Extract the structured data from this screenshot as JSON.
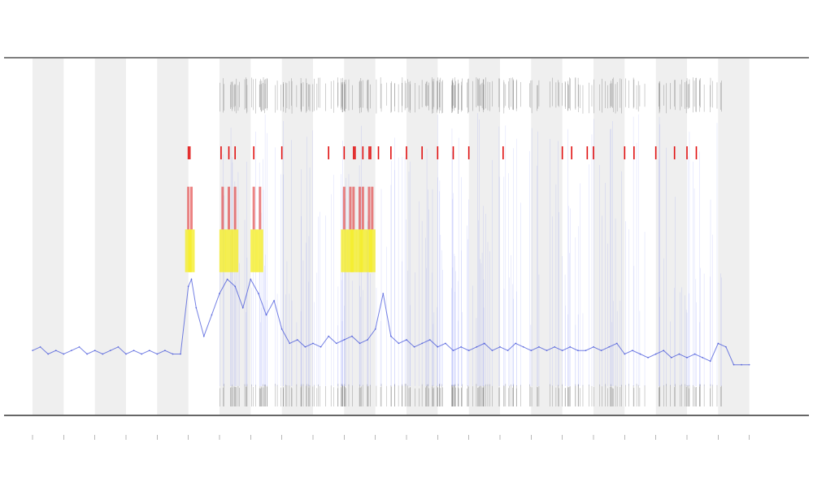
{
  "chart_data": {
    "type": "line",
    "title": "",
    "xlabel": "",
    "ylabel": "",
    "grid": false,
    "legend": "none",
    "ylim": [
      0,
      100
    ],
    "xlim": [
      0,
      24
    ],
    "thresholds": {
      "warning": 43,
      "critical": 52
    },
    "series": [
      {
        "color": "#3b4bd8",
        "x": [
          0.0,
          0.25,
          0.5,
          0.75,
          1.0,
          1.25,
          1.5,
          1.75,
          2.0,
          2.25,
          2.5,
          2.75,
          3.0,
          3.25,
          3.5,
          3.75,
          4.0,
          4.25,
          4.5,
          4.75,
          5.0,
          5.1,
          5.25,
          5.5,
          5.75,
          6.0,
          6.25,
          6.5,
          6.75,
          7.0,
          7.25,
          7.5,
          7.75,
          8.0,
          8.25,
          8.5,
          8.75,
          9.0,
          9.25,
          9.5,
          9.75,
          10.0,
          10.25,
          10.5,
          10.75,
          11.0,
          11.25,
          11.5,
          11.75,
          12.0,
          12.25,
          12.5,
          12.75,
          13.0,
          13.25,
          13.5,
          13.75,
          14.0,
          14.25,
          14.5,
          14.75,
          15.0,
          15.25,
          15.5,
          15.75,
          16.0,
          16.25,
          16.5,
          16.75,
          17.0,
          17.25,
          17.5,
          17.75,
          18.0,
          18.25,
          18.5,
          18.75,
          19.0,
          19.25,
          19.5,
          19.75,
          20.0,
          20.25,
          20.5,
          20.75,
          21.0,
          21.25,
          21.5,
          21.75,
          22.0,
          22.25,
          22.5,
          22.75,
          23.0
        ],
        "y": [
          18,
          19,
          17,
          18,
          17,
          18,
          19,
          17,
          18,
          17,
          18,
          19,
          17,
          18,
          17,
          18,
          17,
          18,
          17,
          17,
          36,
          38,
          30,
          22,
          28,
          34,
          38,
          36,
          30,
          38,
          34,
          28,
          32,
          24,
          20,
          21,
          19,
          20,
          19,
          22,
          20,
          21,
          22,
          20,
          21,
          24,
          34,
          22,
          20,
          21,
          19,
          20,
          21,
          19,
          20,
          18,
          19,
          18,
          19,
          20,
          18,
          19,
          18,
          20,
          19,
          18,
          19,
          18,
          19,
          18,
          19,
          18,
          18,
          19,
          18,
          19,
          20,
          17,
          18,
          17,
          16,
          17,
          18,
          16,
          17,
          16,
          17,
          16,
          15,
          20,
          19,
          14,
          14,
          14
        ]
      }
    ]
  }
}
